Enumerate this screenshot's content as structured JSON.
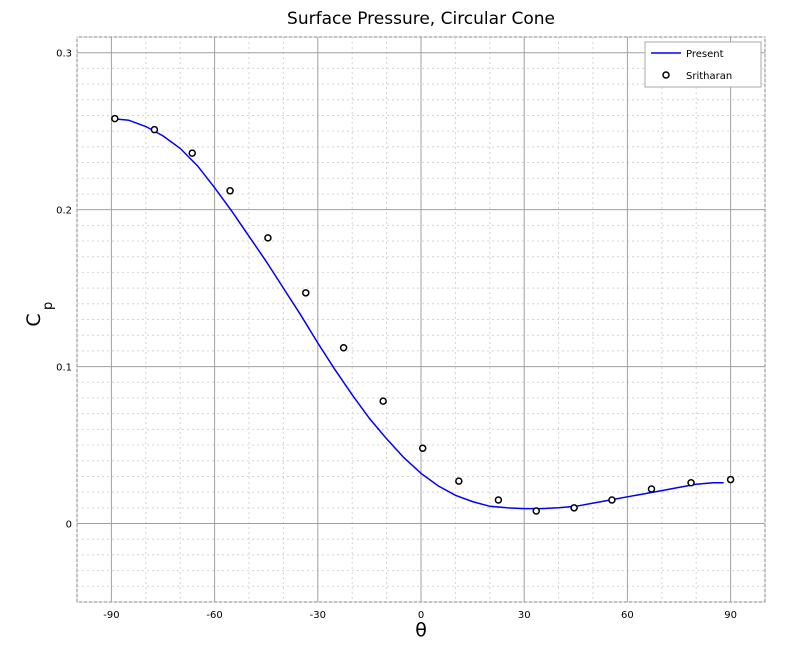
{
  "chart_data": {
    "type": "line",
    "title": "Surface Pressure, Circular Cone",
    "xlabel": "θ",
    "ylabel_main": "C",
    "ylabel_sub": "p",
    "xlim": [
      -100,
      100
    ],
    "ylim": [
      -0.05,
      0.31
    ],
    "xticks": [
      -90,
      -60,
      -30,
      0,
      30,
      60,
      90
    ],
    "xtick_labels": [
      "-90",
      "-60",
      "-30",
      "0",
      "30",
      "60",
      "90"
    ],
    "yticks": [
      0,
      0.1,
      0.2,
      0.3
    ],
    "ytick_labels": [
      "0",
      "0.1",
      "0.2",
      "0.3"
    ],
    "grid": true,
    "legend_position": "top-right",
    "series": [
      {
        "name": "Present",
        "style": "line",
        "color": "#0000ff",
        "x": [
          -90,
          -85,
          -80,
          -75,
          -70,
          -65,
          -60,
          -55,
          -50,
          -45,
          -40,
          -35,
          -30,
          -25,
          -20,
          -15,
          -10,
          -5,
          0,
          5,
          10,
          15,
          20,
          25,
          30,
          35,
          40,
          45,
          50,
          55,
          60,
          65,
          70,
          75,
          80,
          85,
          88
        ],
        "y": [
          0.258,
          0.257,
          0.253,
          0.247,
          0.239,
          0.228,
          0.214,
          0.199,
          0.183,
          0.167,
          0.15,
          0.133,
          0.115,
          0.098,
          0.082,
          0.067,
          0.054,
          0.042,
          0.032,
          0.024,
          0.018,
          0.014,
          0.011,
          0.01,
          0.0095,
          0.0095,
          0.01,
          0.011,
          0.013,
          0.015,
          0.017,
          0.019,
          0.021,
          0.023,
          0.025,
          0.026,
          0.026
        ]
      },
      {
        "name": "Sritharan",
        "style": "markers",
        "color": "#000000",
        "x": [
          -89,
          -77.5,
          -66.5,
          -55.5,
          -44.5,
          -33.5,
          -22.5,
          -11,
          0.5,
          11,
          22.5,
          33.5,
          44.5,
          55.5,
          67,
          78.5,
          90
        ],
        "y": [
          0.258,
          0.251,
          0.236,
          0.212,
          0.182,
          0.147,
          0.112,
          0.078,
          0.048,
          0.027,
          0.015,
          0.008,
          0.01,
          0.015,
          0.022,
          0.026,
          0.028
        ]
      }
    ]
  }
}
